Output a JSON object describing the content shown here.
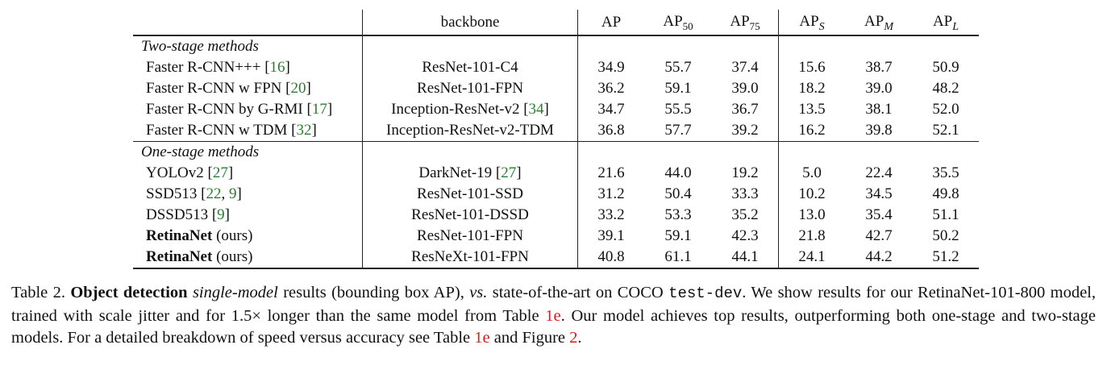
{
  "table": {
    "headers": {
      "method": "",
      "backbone": "backbone",
      "ap": "AP",
      "ap_base": "AP",
      "ap50_sub": "50",
      "ap75_sub": "75",
      "aps_sub": "S",
      "apm_sub": "M",
      "apl_sub": "L"
    },
    "sections": [
      {
        "title": "Two-stage methods",
        "rows": [
          {
            "method": "Faster R-CNN+++ ",
            "cite_pre": "[",
            "cite": "16",
            "cite_post": "]",
            "backbone": "ResNet-101-C4",
            "backbone_cite": "",
            "values": [
              "34.9",
              "55.7",
              "37.4",
              "15.6",
              "38.7",
              "50.9"
            ]
          },
          {
            "method": "Faster R-CNN w FPN ",
            "cite_pre": "[",
            "cite": "20",
            "cite_post": "]",
            "backbone": "ResNet-101-FPN",
            "backbone_cite": "",
            "values": [
              "36.2",
              "59.1",
              "39.0",
              "18.2",
              "39.0",
              "48.2"
            ]
          },
          {
            "method": "Faster R-CNN by G-RMI ",
            "cite_pre": "[",
            "cite": "17",
            "cite_post": "]",
            "backbone": "Inception-ResNet-v2 ",
            "backbone_cite": "34",
            "values": [
              "34.7",
              "55.5",
              "36.7",
              "13.5",
              "38.1",
              "52.0"
            ]
          },
          {
            "method": "Faster R-CNN w TDM ",
            "cite_pre": "[",
            "cite": "32",
            "cite_post": "]",
            "backbone": "Inception-ResNet-v2-TDM",
            "backbone_cite": "",
            "values": [
              "36.8",
              "57.7",
              "39.2",
              "16.2",
              "39.8",
              "52.1"
            ]
          }
        ]
      },
      {
        "title": "One-stage methods",
        "rows": [
          {
            "method": "YOLOv2 ",
            "cite": "27",
            "backbone": "DarkNet-19 ",
            "backbone_cite": "27",
            "values": [
              "21.6",
              "44.0",
              "19.2",
              "5.0",
              "22.4",
              "35.5"
            ]
          },
          {
            "method": "SSD513 ",
            "cite_a": "22",
            "cite_b": "9",
            "backbone": "ResNet-101-SSD",
            "values": [
              "31.2",
              "50.4",
              "33.3",
              "10.2",
              "34.5",
              "49.8"
            ]
          },
          {
            "method": "DSSD513 ",
            "cite": "9",
            "backbone": "ResNet-101-DSSD",
            "values": [
              "33.2",
              "53.3",
              "35.2",
              "13.0",
              "35.4",
              "51.1"
            ]
          },
          {
            "method_bold": "RetinaNet",
            "method_suffix": " (ours)",
            "backbone": "ResNet-101-FPN",
            "values": [
              "39.1",
              "59.1",
              "42.3",
              "21.8",
              "42.7",
              "50.2"
            ]
          },
          {
            "method_bold": "RetinaNet",
            "method_suffix": " (ours)",
            "backbone": "ResNeXt-101-FPN",
            "values": [
              "40.8",
              "61.1",
              "44.1",
              "24.1",
              "44.2",
              "51.2"
            ]
          }
        ]
      }
    ]
  },
  "caption": {
    "label": "Table 2. ",
    "bold1": "Object detection ",
    "ital1": "single-model",
    "t1": " results (bounding box AP), ",
    "ital2": "vs.",
    "t2": " state-of-the-art on COCO ",
    "mono": "test-dev",
    "t3": ". We show results for our RetinaNet-101-800 model, trained with scale jitter and for 1.5× longer than the same model from Table ",
    "ref1": "1e",
    "t4": ". Our model achieves top results, outperforming both one-stage and two-stage models. For a detailed breakdown of speed versus accuracy see Table ",
    "ref2": "1e",
    "t5": " and Figure ",
    "ref3": "2",
    "t6": "."
  },
  "colors": {
    "citation": "#2a7d2e",
    "reference": "#e21818",
    "rule": "#222222"
  }
}
